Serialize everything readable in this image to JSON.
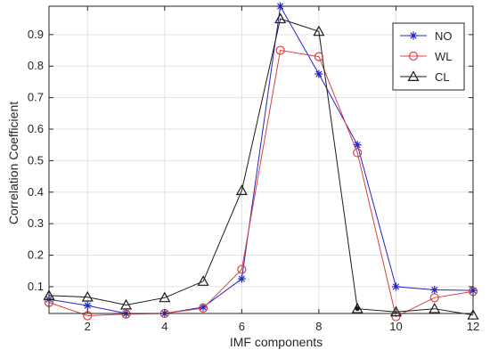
{
  "chart_data": {
    "type": "line",
    "title": "",
    "xlabel": "IMF components",
    "ylabel": "Correlation Coefficient",
    "x": [
      1,
      2,
      3,
      4,
      5,
      6,
      7,
      8,
      9,
      10,
      11,
      12
    ],
    "xlim": [
      1,
      12
    ],
    "ylim": [
      0.015,
      0.99
    ],
    "xticks": [
      2,
      4,
      6,
      8,
      10,
      12
    ],
    "yticks": [
      0.1,
      0.2,
      0.3,
      0.4,
      0.5,
      0.6,
      0.7,
      0.8,
      0.9
    ],
    "grid": true,
    "legend_position": "top-right",
    "series": [
      {
        "name": "NO",
        "marker": "asterisk",
        "color": "#2424c8",
        "values": [
          0.06,
          0.04,
          0.015,
          0.015,
          0.035,
          0.125,
          0.99,
          0.775,
          0.55,
          0.1,
          0.09,
          0.088
        ]
      },
      {
        "name": "WL",
        "marker": "circle",
        "color": "#d94040",
        "values": [
          0.05,
          0.008,
          0.013,
          0.015,
          0.032,
          0.155,
          0.85,
          0.83,
          0.525,
          0.005,
          0.065,
          0.085
        ]
      },
      {
        "name": "CL",
        "marker": "triangle",
        "color": "#1a1a1a",
        "values": [
          0.072,
          0.067,
          0.042,
          0.065,
          0.117,
          0.405,
          0.95,
          0.91,
          0.03,
          0.02,
          0.03,
          0.01
        ]
      }
    ],
    "annotations": [
      {
        "type": "point",
        "x": 9,
        "y": 0.03,
        "color": "#1a1a1a"
      }
    ]
  }
}
